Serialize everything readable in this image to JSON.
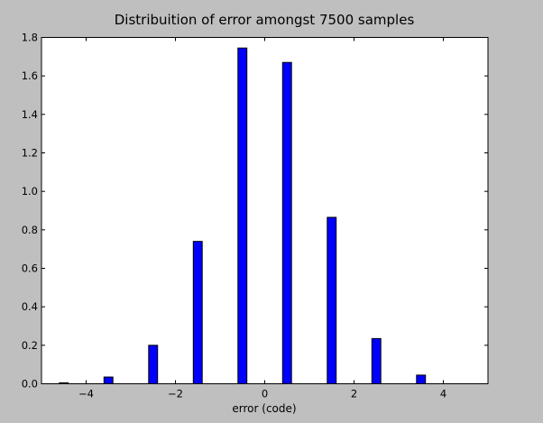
{
  "chart_data": {
    "type": "bar",
    "title": "Distribuition of error amongst 7500 samples",
    "xlabel": "error (code)",
    "ylabel": "",
    "xlim": [
      -5,
      5
    ],
    "ylim": [
      0,
      1.8
    ],
    "bar_width": 0.2,
    "bar_color": "#0000ff",
    "figure_background": "#bfbfbf",
    "axes_background": "#ffffff",
    "grid": false,
    "legend": "none",
    "x_ticks": [
      -4,
      -2,
      0,
      2,
      4
    ],
    "x_tick_labels": [
      "−4",
      "−2",
      "0",
      "2",
      "4"
    ],
    "y_ticks": [
      0.0,
      0.2,
      0.4,
      0.6,
      0.8,
      1.0,
      1.2,
      1.4,
      1.6,
      1.8
    ],
    "y_tick_labels": [
      "0.0",
      "0.2",
      "0.4",
      "0.6",
      "0.8",
      "1.0",
      "1.2",
      "1.4",
      "1.6",
      "1.8"
    ],
    "x": [
      -4.6,
      -3.6,
      -2.6,
      -1.6,
      -0.6,
      0.4,
      1.4,
      2.4,
      3.4
    ],
    "values": [
      0.005,
      0.035,
      0.2,
      0.74,
      1.745,
      1.67,
      0.865,
      0.235,
      0.045
    ]
  }
}
